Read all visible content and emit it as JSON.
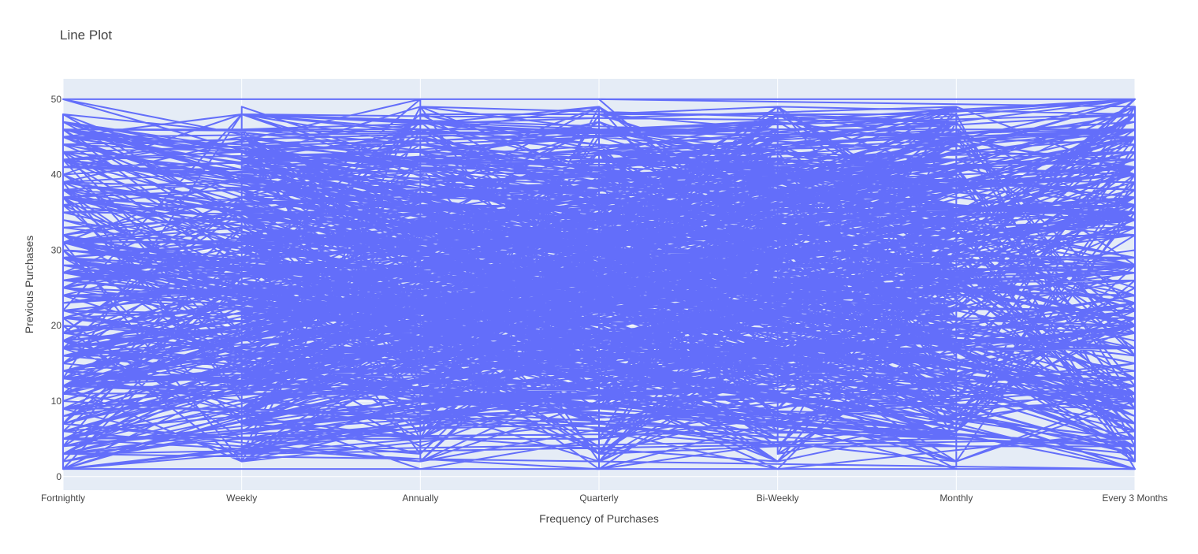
{
  "chart_data": {
    "type": "line",
    "title": "Line Plot",
    "xlabel": "Frequency of Purchases",
    "ylabel": "Previous Purchases",
    "categories": [
      "Fortnightly",
      "Weekly",
      "Annually",
      "Quarterly",
      "Bi-Weekly",
      "Monthly",
      "Every 3 Months"
    ],
    "yticks": [
      0,
      10,
      20,
      30,
      40,
      50
    ],
    "ylim": [
      -1.8,
      52.7
    ],
    "y_value_range": [
      1,
      50
    ],
    "grid": true,
    "legend": "none",
    "colors": {
      "line": "#636efa",
      "plot_bg": "#e5ecf6",
      "grid": "#ffffff"
    }
  }
}
